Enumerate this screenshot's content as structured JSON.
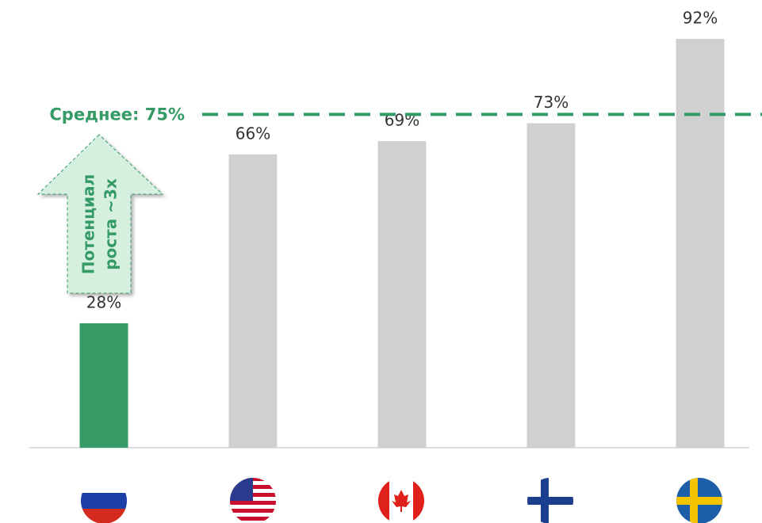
{
  "chart_data": {
    "type": "bar",
    "categories": [
      null,
      null,
      null,
      null,
      null
    ],
    "values": [
      28,
      66,
      69,
      73,
      92
    ],
    "value_labels": [
      "28%",
      "66%",
      "69%",
      "73%",
      "92%"
    ],
    "colors": [
      "#359a65",
      "#d0d0d0",
      "#d0d0d0",
      "#d0d0d0",
      "#d0d0d0"
    ],
    "ylim": [
      0,
      92
    ],
    "reference_line": {
      "value": 75,
      "label": "Среднее: 75%",
      "color": "#359a65"
    },
    "annotation": [
      "Потенциал",
      "роста ~3x"
    ]
  }
}
